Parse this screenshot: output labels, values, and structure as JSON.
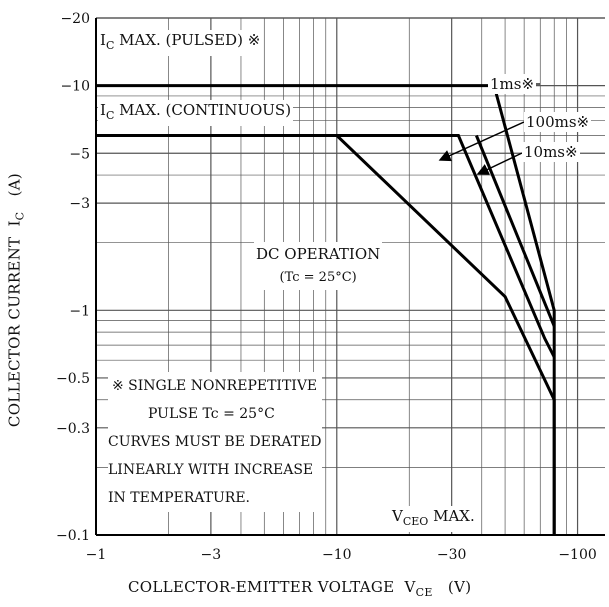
{
  "chart_data": {
    "type": "line",
    "title": "",
    "xlabel": "COLLECTOR-EMITTER VOLTAGE",
    "xlabel_symbol": "V",
    "xlabel_sub": "CE",
    "xlabel_unit": "(V)",
    "ylabel": "COLLECTOR CURRENT",
    "ylabel_symbol": "I",
    "ylabel_sub": "C",
    "ylabel_unit": "(A)",
    "x_scale": "log",
    "y_scale": "log",
    "xlim": [
      1,
      130
    ],
    "ylim": [
      0.1,
      20
    ],
    "grid": true,
    "x_ticks": [
      {
        "value": 1,
        "label": "−1"
      },
      {
        "value": 3,
        "label": "−3"
      },
      {
        "value": 10,
        "label": "−10"
      },
      {
        "value": 30,
        "label": "−30"
      },
      {
        "value": 100,
        "label": "−100"
      }
    ],
    "y_ticks": [
      {
        "value": 20,
        "label": "−20"
      },
      {
        "value": 10,
        "label": "−10"
      },
      {
        "value": 5,
        "label": "−5"
      },
      {
        "value": 3,
        "label": "−3"
      },
      {
        "value": 1,
        "label": "−1"
      },
      {
        "value": 0.5,
        "label": "−0.5"
      },
      {
        "value": 0.3,
        "label": "−0.3"
      },
      {
        "value": 0.1,
        "label": "−0.1"
      }
    ],
    "series": [
      {
        "name": "1ms※",
        "points": [
          [
            1,
            10
          ],
          [
            45,
            10
          ],
          [
            80,
            1.0
          ],
          [
            80,
            0.1
          ]
        ]
      },
      {
        "name": "100ms※",
        "points": [
          [
            1,
            6
          ],
          [
            32,
            6
          ],
          [
            73,
            0.75
          ],
          [
            80,
            0.62
          ]
        ]
      },
      {
        "name": "10ms※",
        "points": [
          [
            38,
            6
          ],
          [
            80,
            0.85
          ]
        ]
      },
      {
        "name": "DC OPERATION",
        "points": [
          [
            1,
            6
          ],
          [
            10,
            6
          ],
          [
            50,
            1.15
          ],
          [
            80,
            0.4
          ],
          [
            80,
            0.1
          ]
        ]
      }
    ],
    "labels": {
      "ic_max_pulsed": "MAX. (PULSED) ※",
      "ic_max_continuous": "MAX. (CONTINUOUS)",
      "ic_symbol": "I",
      "ic_sub": "C",
      "one_ms": "1ms※",
      "hundred_ms": "100ms※",
      "ten_ms": "10ms※",
      "dc_operation": "DC OPERATION",
      "dc_condition": "(Tc = 25°C)",
      "vceo_symbol": "V",
      "vceo_sub": "CEO",
      "vceo_max": "MAX."
    },
    "notes": [
      "※  SINGLE NONREPETITIVE",
      "PULSE Tc = 25°C",
      "CURVES MUST BE DERATED",
      "LINEARLY WITH INCREASE",
      "IN TEMPERATURE."
    ]
  }
}
